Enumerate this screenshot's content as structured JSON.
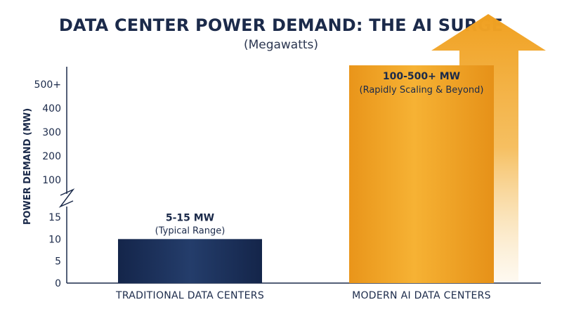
{
  "chart_data": {
    "type": "bar",
    "title": "DATA CENTER POWER DEMAND: THE AI SURGE",
    "subtitle": "(Megawatts)",
    "ylabel": "POWER DEMAND (MW)",
    "xlabel": "",
    "axis_break": true,
    "lower_ticks": [
      "0",
      "5",
      "10",
      "15"
    ],
    "upper_ticks": [
      "100",
      "200",
      "300",
      "400",
      "500+"
    ],
    "lower_ylim": [
      0,
      15
    ],
    "upper_ylim": [
      100,
      500
    ],
    "categories": [
      "TRADITIONAL DATA CENTERS",
      "MODERN AI DATA CENTERS"
    ],
    "values": [
      10,
      580
    ],
    "data_labels": [
      {
        "main": "5-15 MW",
        "sub": "(Typical Range)"
      },
      {
        "main": "100-500+ MW",
        "sub": "(Rapidly Scaling & Beyond)"
      }
    ],
    "colors": {
      "traditional": "#1b2f55",
      "modern": "#f2a623",
      "arrow": "#f2a623",
      "text": "#1b2a4a"
    },
    "grid": false,
    "legend": "none",
    "annotation_icon": "upward-arrow-icon"
  }
}
